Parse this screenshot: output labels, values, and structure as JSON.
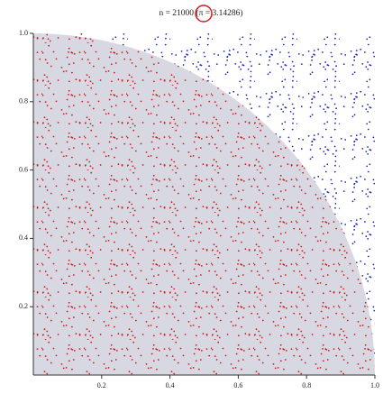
{
  "chart_data": {
    "type": "scatter",
    "title": "n = 21000 (π = 3.14286)",
    "xlim": [
      0,
      1
    ],
    "ylim": [
      0,
      1
    ],
    "xticks": [
      0.2,
      0.4,
      0.6,
      0.8,
      {
        "value": 1,
        "label": "1.0"
      }
    ],
    "yticks": [
      0.2,
      0.4,
      0.6,
      0.8,
      {
        "value": 1,
        "label": "1.0"
      }
    ],
    "inside_color": "#cf1d1d",
    "outside_color": "#1c2bb3",
    "region_color": "#d8d8e2"
  }
}
